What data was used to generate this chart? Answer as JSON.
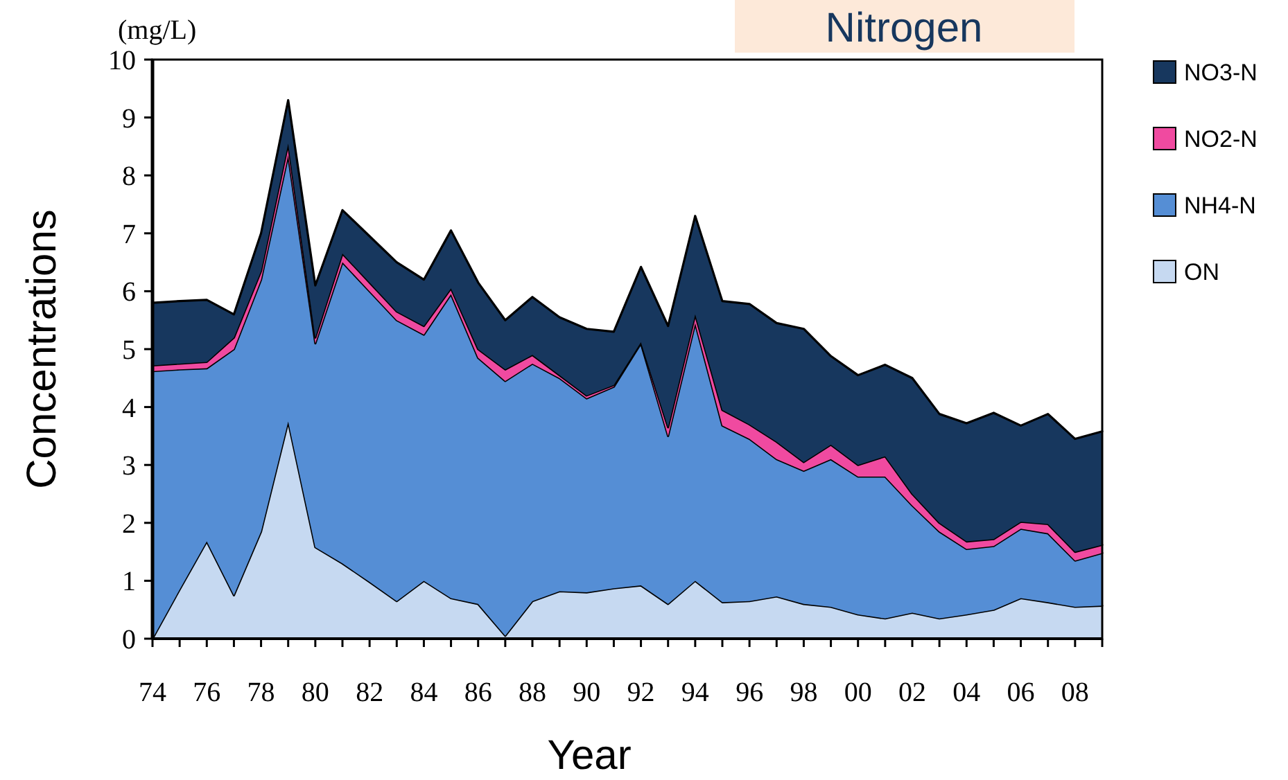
{
  "chart_data": {
    "type": "area",
    "title": "Nitrogen",
    "xlabel": "Year",
    "ylabel": "Concentrations",
    "annotations": [
      "(mg/L)"
    ],
    "stacked": true,
    "legend": "right",
    "ylim": [
      0,
      10
    ],
    "yticks": [
      0,
      1,
      2,
      3,
      4,
      5,
      6,
      7,
      8,
      9,
      10
    ],
    "categories": [
      "74",
      null,
      "76",
      null,
      "78",
      null,
      "80",
      null,
      "82",
      null,
      "84",
      null,
      "86",
      null,
      "88",
      null,
      "90",
      null,
      "92",
      null,
      "94",
      null,
      "96",
      null,
      "98",
      null,
      "00",
      null,
      "02",
      null,
      "04",
      null,
      "06",
      null,
      "08",
      null
    ],
    "series": [
      {
        "name": "ON",
        "color": "#c6d9f1",
        "values": [
          0,
          0.85,
          1.68,
          0.75,
          1.85,
          3.75,
          1.58,
          1.3,
          0.98,
          0.65,
          1.0,
          0.7,
          0.6,
          0.05,
          0.65,
          0.82,
          0.8,
          0.87,
          0.92,
          0.6,
          1.0,
          0.63,
          0.65,
          0.73,
          0.6,
          0.55,
          0.42,
          0.35,
          0.45,
          0.35,
          0.42,
          0.5,
          0.7,
          0.63,
          0.55,
          0.57
        ]
      },
      {
        "name": "NH4-N",
        "color": "#558ed5",
        "values": [
          4.62,
          3.8,
          2.99,
          4.25,
          4.35,
          4.6,
          3.52,
          5.2,
          5.02,
          4.85,
          4.25,
          5.25,
          4.25,
          4.4,
          4.1,
          3.68,
          3.35,
          3.48,
          4.18,
          2.9,
          4.45,
          3.05,
          2.8,
          2.37,
          2.3,
          2.55,
          2.38,
          2.45,
          1.85,
          1.5,
          1.13,
          1.1,
          1.2,
          1.19,
          0.8,
          0.91
        ]
      },
      {
        "name": "NO2-N",
        "color": "#f04aa0",
        "values": [
          0.1,
          0.1,
          0.11,
          0.2,
          0.15,
          0.2,
          0.1,
          0.15,
          0.15,
          0.15,
          0.15,
          0.1,
          0.15,
          0.2,
          0.15,
          0.05,
          0.05,
          0.03,
          0.02,
          0.15,
          0.15,
          0.27,
          0.25,
          0.3,
          0.15,
          0.25,
          0.2,
          0.35,
          0.2,
          0.15,
          0.13,
          0.12,
          0.12,
          0.16,
          0.15,
          0.14
        ]
      },
      {
        "name": "NO3-N",
        "color": "#17375e",
        "values": [
          1.08,
          1.08,
          1.07,
          0.4,
          0.65,
          0.75,
          0.9,
          0.75,
          0.8,
          0.85,
          0.8,
          1.0,
          1.15,
          0.85,
          1.0,
          1.0,
          1.15,
          0.92,
          1.3,
          1.75,
          1.7,
          1.88,
          2.08,
          2.05,
          2.3,
          1.53,
          1.55,
          1.58,
          2.0,
          1.88,
          2.04,
          2.18,
          1.66,
          1.9,
          1.95,
          1.96
        ]
      }
    ]
  }
}
